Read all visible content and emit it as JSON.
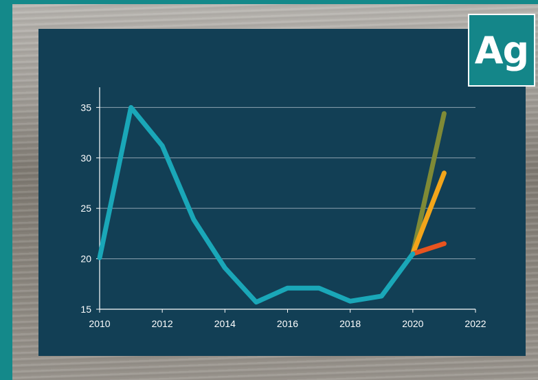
{
  "badge": {
    "symbol": "Ag"
  },
  "colors": {
    "panel": "#123f55",
    "frame": "#14898a",
    "series_history": "#1aa7b8",
    "series_high": "#7f8a36",
    "series_mid": "#f3a51a",
    "series_low": "#e8541f"
  },
  "chart_data": {
    "type": "line",
    "title": "",
    "xlabel": "",
    "ylabel": "",
    "xlim": [
      2010,
      2022
    ],
    "ylim": [
      15,
      37
    ],
    "grid": true,
    "x_ticks": [
      "2010",
      "2012",
      "2014",
      "2016",
      "2018",
      "2020",
      "2022"
    ],
    "y_ticks": [
      "15",
      "20",
      "25",
      "30",
      "35"
    ],
    "series": [
      {
        "color": "#1aa7b8",
        "x": [
          2010,
          2011,
          2012,
          2013,
          2014,
          2015,
          2016,
          2017,
          2018,
          2019,
          2020
        ],
        "y": [
          20.1,
          35.0,
          31.2,
          23.9,
          19.1,
          15.7,
          17.1,
          17.1,
          15.8,
          16.3,
          20.5
        ]
      },
      {
        "color": "#7f8a36",
        "x": [
          2020,
          2021
        ],
        "y": [
          20.5,
          34.4
        ]
      },
      {
        "color": "#f3a51a",
        "x": [
          2020,
          2021
        ],
        "y": [
          20.5,
          28.5
        ]
      },
      {
        "color": "#e8541f",
        "x": [
          2020,
          2021
        ],
        "y": [
          20.5,
          21.5
        ]
      }
    ]
  }
}
